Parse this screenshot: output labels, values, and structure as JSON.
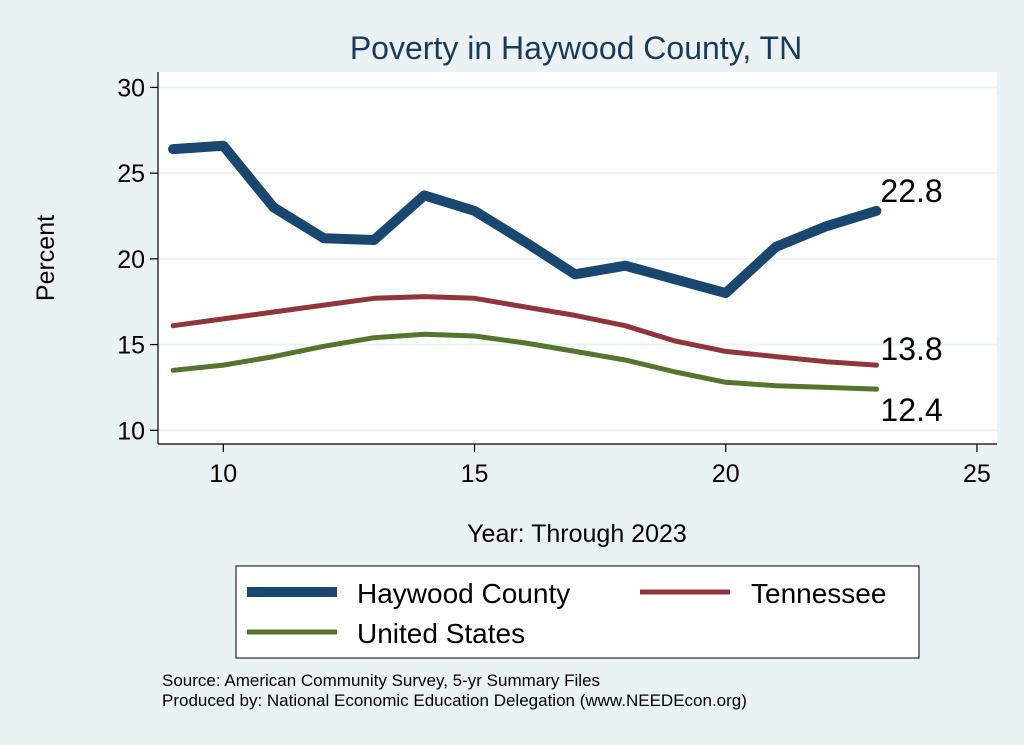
{
  "chart_data": {
    "type": "line",
    "title": "Poverty in Haywood County, TN",
    "xlabel": "Year: Through 2023",
    "ylabel": "Percent",
    "xlim": [
      8.7,
      25.4
    ],
    "ylim": [
      9.2,
      30.9
    ],
    "xticks": [
      10,
      15,
      20,
      25
    ],
    "yticks": [
      10,
      15,
      20,
      25,
      30
    ],
    "grid": "horizontal",
    "legend_position": "bottom",
    "series": [
      {
        "name": "Haywood County",
        "color": "#1a476f",
        "x": [
          9,
          10,
          11,
          12,
          13,
          14,
          15,
          16,
          17,
          18,
          19,
          20,
          21,
          22,
          23
        ],
        "y": [
          26.4,
          26.6,
          23.0,
          21.2,
          21.1,
          23.7,
          22.8,
          21.0,
          19.1,
          19.6,
          18.8,
          18.0,
          20.7,
          21.9,
          22.8
        ],
        "end_label": "22.8"
      },
      {
        "name": "Tennessee",
        "color": "#90353b",
        "x": [
          9,
          10,
          11,
          12,
          13,
          14,
          15,
          16,
          17,
          18,
          19,
          20,
          21,
          22,
          23
        ],
        "y": [
          16.1,
          16.5,
          16.9,
          17.3,
          17.7,
          17.8,
          17.7,
          17.2,
          16.7,
          16.1,
          15.2,
          14.6,
          14.3,
          14.0,
          13.8
        ],
        "end_label": "13.8"
      },
      {
        "name": "United States",
        "color": "#55752f",
        "x": [
          9,
          10,
          11,
          12,
          13,
          14,
          15,
          16,
          17,
          18,
          19,
          20,
          21,
          22,
          23
        ],
        "y": [
          13.5,
          13.8,
          14.3,
          14.9,
          15.4,
          15.6,
          15.5,
          15.1,
          14.6,
          14.1,
          13.4,
          12.8,
          12.6,
          12.5,
          12.4
        ],
        "end_label": "12.4"
      }
    ]
  },
  "notes": {
    "source": "Source: American Community Survey, 5-yr Summary Files",
    "produced": "Produced by: National Economic Education Delegation (www.NEEDEcon.org)"
  }
}
